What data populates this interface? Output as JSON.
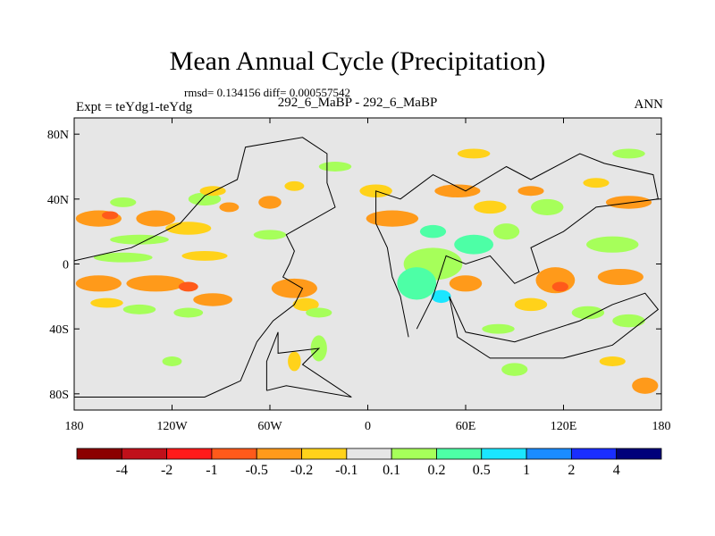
{
  "chart_data": {
    "type": "heatmap",
    "title": "Mean Annual Cycle (Precipitation)",
    "stats_text": "rmsd= 0.134156 diff= 0.000557542",
    "subtitle": "292_6_MaBP - 292_6_MaBP",
    "left_label": "Expt = teYdg1-teYdg",
    "right_label": "ANN",
    "x_ticks": [
      {
        "value": -180,
        "label": "180"
      },
      {
        "value": -120,
        "label": "120W"
      },
      {
        "value": -60,
        "label": "60W"
      },
      {
        "value": 0,
        "label": "0"
      },
      {
        "value": 60,
        "label": "60E"
      },
      {
        "value": 120,
        "label": "120E"
      },
      {
        "value": 180,
        "label": "180"
      }
    ],
    "y_ticks": [
      {
        "value": 80,
        "label": "80N"
      },
      {
        "value": 40,
        "label": "40N"
      },
      {
        "value": 0,
        "label": "0"
      },
      {
        "value": -40,
        "label": "40S"
      },
      {
        "value": -80,
        "label": "80S"
      }
    ],
    "xlim": [
      -180,
      180
    ],
    "ylim": [
      -90,
      90
    ],
    "colorbar": {
      "colors": [
        "#8b0000",
        "#c0101a",
        "#ff1a1a",
        "#ff5a1a",
        "#ff9a1a",
        "#ffd21a",
        "#e6e6e6",
        "#a6ff5a",
        "#4dffa6",
        "#1ae6ff",
        "#1a8cff",
        "#1a2eff",
        "#00007a"
      ],
      "labels": [
        "-4",
        "-2",
        "-1",
        "-0.5",
        "-0.2",
        "-0.1",
        "0.1",
        "0.2",
        "0.5",
        "1",
        "2",
        "4"
      ]
    },
    "background_color": "#e6e6e6",
    "anomaly_patches": [
      {
        "lon": -165,
        "lat": 28,
        "rx": 14,
        "ry": 5,
        "category": 4
      },
      {
        "lon": -158,
        "lat": 30,
        "rx": 5,
        "ry": 2.5,
        "category": 3
      },
      {
        "lon": -130,
        "lat": 28,
        "rx": 12,
        "ry": 5,
        "category": 4
      },
      {
        "lon": -110,
        "lat": 22,
        "rx": 14,
        "ry": 4,
        "category": 5
      },
      {
        "lon": -150,
        "lat": 38,
        "rx": 8,
        "ry": 3,
        "category": 7
      },
      {
        "lon": -100,
        "lat": 40,
        "rx": 10,
        "ry": 4,
        "category": 7
      },
      {
        "lon": -85,
        "lat": 35,
        "rx": 6,
        "ry": 3,
        "category": 4
      },
      {
        "lon": -95,
        "lat": 45,
        "rx": 8,
        "ry": 3,
        "category": 5
      },
      {
        "lon": -60,
        "lat": 38,
        "rx": 7,
        "ry": 4,
        "category": 4
      },
      {
        "lon": -45,
        "lat": 48,
        "rx": 6,
        "ry": 3,
        "category": 5
      },
      {
        "lon": -140,
        "lat": 15,
        "rx": 18,
        "ry": 3,
        "category": 7
      },
      {
        "lon": -60,
        "lat": 18,
        "rx": 10,
        "ry": 3,
        "category": 7
      },
      {
        "lon": -150,
        "lat": 4,
        "rx": 18,
        "ry": 3,
        "category": 7
      },
      {
        "lon": -100,
        "lat": 5,
        "rx": 14,
        "ry": 3,
        "category": 5
      },
      {
        "lon": -165,
        "lat": -12,
        "rx": 14,
        "ry": 5,
        "category": 4
      },
      {
        "lon": -130,
        "lat": -12,
        "rx": 18,
        "ry": 5,
        "category": 4
      },
      {
        "lon": -110,
        "lat": -14,
        "rx": 6,
        "ry": 3,
        "category": 3
      },
      {
        "lon": -160,
        "lat": -24,
        "rx": 10,
        "ry": 3,
        "category": 5
      },
      {
        "lon": -95,
        "lat": -22,
        "rx": 12,
        "ry": 4,
        "category": 4
      },
      {
        "lon": -45,
        "lat": -15,
        "rx": 14,
        "ry": 6,
        "category": 4
      },
      {
        "lon": -38,
        "lat": -25,
        "rx": 8,
        "ry": 4,
        "category": 5
      },
      {
        "lon": -140,
        "lat": -28,
        "rx": 10,
        "ry": 3,
        "category": 7
      },
      {
        "lon": -110,
        "lat": -30,
        "rx": 9,
        "ry": 3,
        "category": 7
      },
      {
        "lon": -30,
        "lat": -30,
        "rx": 8,
        "ry": 3,
        "category": 7
      },
      {
        "lon": -30,
        "lat": -52,
        "rx": 5,
        "ry": 8,
        "category": 7
      },
      {
        "lon": -45,
        "lat": -60,
        "rx": 4,
        "ry": 6,
        "category": 5
      },
      {
        "lon": -120,
        "lat": -60,
        "rx": 6,
        "ry": 3,
        "category": 7
      },
      {
        "lon": 15,
        "lat": 28,
        "rx": 16,
        "ry": 5,
        "category": 4
      },
      {
        "lon": 5,
        "lat": 45,
        "rx": 10,
        "ry": 4,
        "category": 5
      },
      {
        "lon": 40,
        "lat": 0,
        "rx": 18,
        "ry": 10,
        "category": 7
      },
      {
        "lon": 30,
        "lat": -12,
        "rx": 12,
        "ry": 10,
        "category": 8
      },
      {
        "lon": 45,
        "lat": -20,
        "rx": 6,
        "ry": 4,
        "category": 9
      },
      {
        "lon": 65,
        "lat": 12,
        "rx": 12,
        "ry": 6,
        "category": 8
      },
      {
        "lon": 40,
        "lat": 20,
        "rx": 8,
        "ry": 4,
        "category": 8
      },
      {
        "lon": 60,
        "lat": -12,
        "rx": 10,
        "ry": 5,
        "category": 4
      },
      {
        "lon": 55,
        "lat": 45,
        "rx": 14,
        "ry": 4,
        "category": 4
      },
      {
        "lon": 75,
        "lat": 35,
        "rx": 10,
        "ry": 4,
        "category": 5
      },
      {
        "lon": 85,
        "lat": 20,
        "rx": 8,
        "ry": 5,
        "category": 7
      },
      {
        "lon": 110,
        "lat": 35,
        "rx": 10,
        "ry": 5,
        "category": 7
      },
      {
        "lon": 100,
        "lat": 45,
        "rx": 8,
        "ry": 3,
        "category": 4
      },
      {
        "lon": 115,
        "lat": -10,
        "rx": 12,
        "ry": 8,
        "category": 4
      },
      {
        "lon": 118,
        "lat": -14,
        "rx": 5,
        "ry": 3,
        "category": 3
      },
      {
        "lon": 150,
        "lat": 12,
        "rx": 16,
        "ry": 5,
        "category": 7
      },
      {
        "lon": 155,
        "lat": -8,
        "rx": 14,
        "ry": 5,
        "category": 4
      },
      {
        "lon": 160,
        "lat": 38,
        "rx": 14,
        "ry": 4,
        "category": 4
      },
      {
        "lon": 140,
        "lat": 50,
        "rx": 8,
        "ry": 3,
        "category": 5
      },
      {
        "lon": 135,
        "lat": -30,
        "rx": 10,
        "ry": 4,
        "category": 7
      },
      {
        "lon": 160,
        "lat": -35,
        "rx": 10,
        "ry": 4,
        "category": 7
      },
      {
        "lon": 100,
        "lat": -25,
        "rx": 10,
        "ry": 4,
        "category": 5
      },
      {
        "lon": 80,
        "lat": -40,
        "rx": 10,
        "ry": 3,
        "category": 7
      },
      {
        "lon": -20,
        "lat": 60,
        "rx": 10,
        "ry": 3,
        "category": 7
      },
      {
        "lon": 65,
        "lat": 68,
        "rx": 10,
        "ry": 3,
        "category": 5
      },
      {
        "lon": 160,
        "lat": 68,
        "rx": 10,
        "ry": 3,
        "category": 7
      },
      {
        "lon": 150,
        "lat": -60,
        "rx": 8,
        "ry": 3,
        "category": 5
      },
      {
        "lon": 170,
        "lat": -75,
        "rx": 8,
        "ry": 5,
        "category": 4
      },
      {
        "lon": 90,
        "lat": -65,
        "rx": 8,
        "ry": 4,
        "category": 7
      }
    ],
    "continent_outlines": [
      [
        [
          -180,
          -82
        ],
        [
          -100,
          -82
        ],
        [
          -78,
          -72
        ],
        [
          -68,
          -48
        ],
        [
          -58,
          -35
        ],
        [
          -45,
          -25
        ],
        [
          -40,
          -15
        ],
        [
          -52,
          -8
        ],
        [
          -48,
          0
        ],
        [
          -45,
          8
        ],
        [
          -50,
          18
        ],
        [
          -20,
          35
        ],
        [
          -25,
          50
        ],
        [
          -25,
          68
        ],
        [
          -40,
          78
        ],
        [
          -75,
          72
        ],
        [
          -80,
          52
        ],
        [
          -100,
          42
        ],
        [
          -115,
          25
        ],
        [
          -145,
          10
        ],
        [
          -180,
          2
        ]
      ],
      [
        [
          -62,
          -78
        ],
        [
          -50,
          -75
        ],
        [
          -10,
          -82
        ],
        [
          -40,
          -62
        ],
        [
          -30,
          -52
        ],
        [
          -55,
          -55
        ],
        [
          -55,
          -42
        ],
        [
          -62,
          -60
        ],
        [
          -62,
          -78
        ]
      ],
      [
        [
          25,
          -45
        ],
        [
          20,
          -20
        ],
        [
          15,
          -8
        ],
        [
          12,
          10
        ],
        [
          5,
          25
        ],
        [
          5,
          45
        ],
        [
          20,
          40
        ],
        [
          40,
          55
        ],
        [
          60,
          45
        ],
        [
          85,
          60
        ],
        [
          100,
          52
        ],
        [
          130,
          68
        ],
        [
          145,
          62
        ],
        [
          175,
          55
        ],
        [
          178,
          40
        ],
        [
          140,
          35
        ],
        [
          120,
          20
        ],
        [
          100,
          10
        ],
        [
          105,
          -5
        ],
        [
          90,
          -12
        ],
        [
          75,
          5
        ],
        [
          60,
          0
        ],
        [
          48,
          5
        ],
        [
          40,
          -20
        ],
        [
          30,
          -40
        ]
      ],
      [
        [
          50,
          -20
        ],
        [
          60,
          -42
        ],
        [
          90,
          -48
        ],
        [
          130,
          -35
        ],
        [
          150,
          -25
        ],
        [
          170,
          -18
        ],
        [
          178,
          -28
        ],
        [
          150,
          -50
        ],
        [
          120,
          -58
        ],
        [
          75,
          -58
        ],
        [
          55,
          -45
        ],
        [
          50,
          -20
        ]
      ]
    ]
  }
}
